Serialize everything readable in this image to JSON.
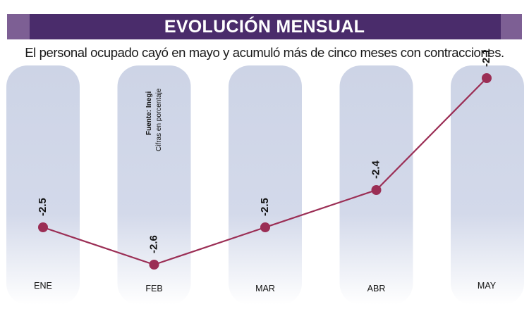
{
  "banner": {
    "title": "EVOLUCIÓN MENSUAL"
  },
  "subtitle": "El personal ocupado cayó en mayo y acumuló más de cinco meses con contracciones.",
  "source": {
    "line1": "Fuente: Inegi",
    "line2": "Cifras en porcentaje"
  },
  "colors": {
    "banner": "#4a2c6b",
    "banner_caps": "#7d5f94",
    "column_fill": "#cdd4e6",
    "line": "#9b2e55",
    "marker": "#9b2e55"
  },
  "chart_data": {
    "type": "line",
    "categories": [
      "ENE",
      "FEB",
      "MAR",
      "ABR",
      "MAY"
    ],
    "values": [
      -2.5,
      -2.6,
      -2.5,
      -2.4,
      -2.1
    ],
    "labels": [
      "-2.5",
      "-2.6",
      "-2.5",
      "-2.4",
      "-2.1"
    ],
    "title": "EVOLUCIÓN MENSUAL",
    "xlabel": "",
    "ylabel": "",
    "ylim": [
      -2.6,
      -2.1
    ],
    "grid": false,
    "legend": "none"
  }
}
